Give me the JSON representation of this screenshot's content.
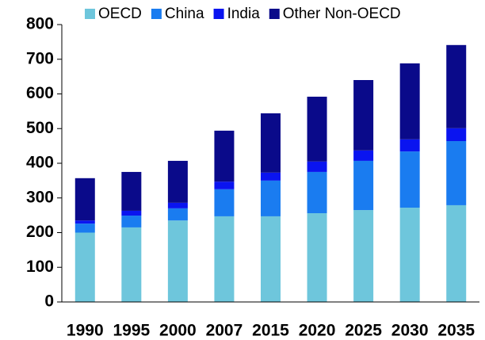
{
  "chart_data": {
    "type": "stacked_bar",
    "categories": [
      "1990",
      "1995",
      "2000",
      "2007",
      "2015",
      "2020",
      "2025",
      "2030",
      "2035"
    ],
    "series": [
      {
        "name": "OECD",
        "color": "#6ec6dc",
        "values": [
          200,
          215,
          235,
          247,
          247,
          256,
          265,
          272,
          279
        ]
      },
      {
        "name": "China",
        "color": "#1a7cf0",
        "values": [
          26,
          34,
          35,
          78,
          103,
          119,
          142,
          162,
          185
        ]
      },
      {
        "name": "India",
        "color": "#0a14f0",
        "values": [
          9,
          14,
          16,
          22,
          23,
          30,
          30,
          35,
          37
        ]
      },
      {
        "name": "Other Non-OECD",
        "color": "#0a0a8a",
        "values": [
          122,
          112,
          121,
          147,
          171,
          187,
          203,
          219,
          240
        ]
      }
    ],
    "ylim": [
      0,
      800
    ],
    "yticks": [
      0,
      100,
      200,
      300,
      400,
      500,
      600,
      700,
      800
    ],
    "legend": "top"
  }
}
